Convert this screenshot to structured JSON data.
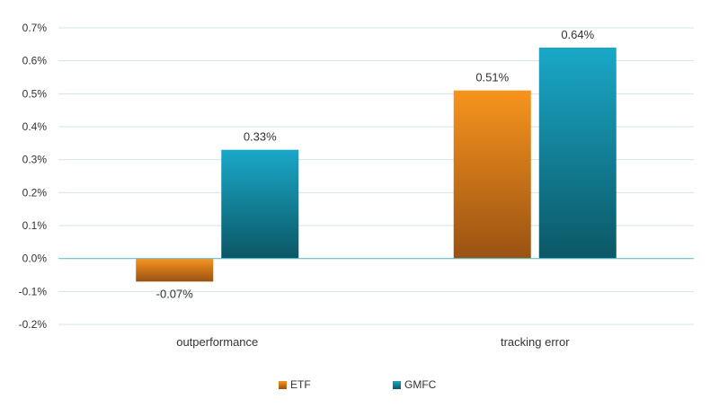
{
  "chart_data": {
    "type": "bar",
    "categories": [
      "outperformance",
      "tracking error"
    ],
    "series": [
      {
        "name": "ETF",
        "values": [
          -0.07,
          0.51
        ],
        "labels": [
          "-0.07%",
          "0.51%"
        ],
        "color_top": "#F7941D",
        "color_bottom": "#9A5213"
      },
      {
        "name": "GMFC",
        "values": [
          0.33,
          0.64
        ],
        "labels": [
          "0.33%",
          "0.64%"
        ],
        "color_top": "#1AA8C8",
        "color_bottom": "#0B5765"
      }
    ],
    "ylim": [
      -0.2,
      0.7
    ],
    "yticks": [
      0.7,
      0.6,
      0.5,
      0.4,
      0.3,
      0.2,
      0.1,
      0.0,
      -0.1,
      -0.2
    ],
    "ytick_labels": [
      "0.7%",
      "0.6%",
      "0.5%",
      "0.4%",
      "0.3%",
      "0.2%",
      "0.1%",
      "0.0%",
      "-0.1%",
      "-0.2%"
    ],
    "title": "",
    "xlabel": "",
    "ylabel": "",
    "grid": true,
    "legend_position": "bottom-center",
    "gridline_color": "#D0E4EA",
    "zero_line_color": "#5FC3D6"
  }
}
